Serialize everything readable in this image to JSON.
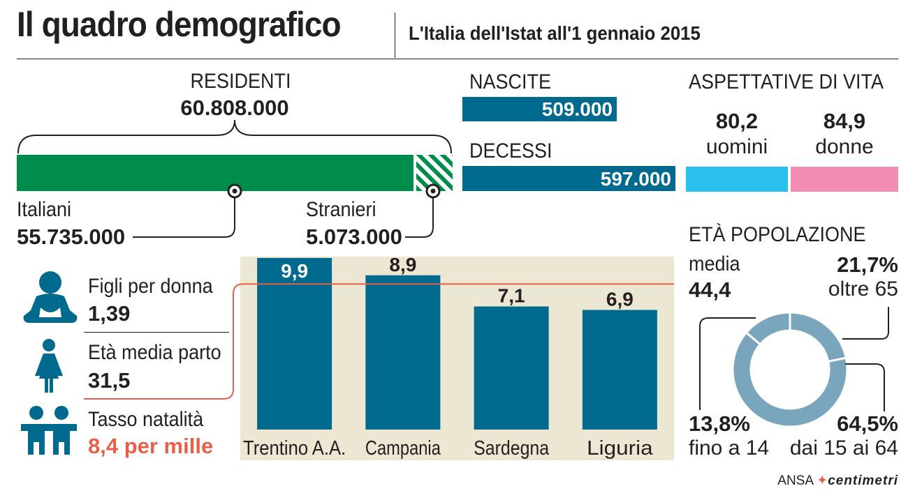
{
  "header": {
    "title": "Il quadro demografico",
    "subtitle": "L'Italia dell'Istat all'1 gennaio 2015"
  },
  "residenti": {
    "label": "RESIDENTI",
    "total": "60.808.000",
    "italiani_label": "Italiani",
    "italiani_value": "55.735.000",
    "stranieri_label": "Stranieri",
    "stranieri_value": "5.073.000",
    "italiani_share": 0.9166,
    "colors": {
      "italiani": "#008c4a",
      "stranieri_stripe": "#008c4a"
    }
  },
  "movimento": {
    "nascite_label": "NASCITE",
    "nascite_value": "509.000",
    "decessi_label": "DECESSI",
    "decessi_value": "597.000",
    "nascite_num": 509000,
    "decessi_num": 597000,
    "color": "#006a8e"
  },
  "aspettative": {
    "label": "ASPETTATIVE DI VITA",
    "uomini_value": "80,2",
    "uomini_label": "uomini",
    "donne_value": "84,9",
    "donne_label": "donne",
    "colors": {
      "uomini": "#29c0ee",
      "donne": "#f28db4"
    }
  },
  "natalita": {
    "figli_label": "Figli per donna",
    "figli_value": "1,39",
    "eta_label": "Età media parto",
    "eta_value": "31,5",
    "tasso_label": "Tasso natalità",
    "tasso_value": "8,4 per mille",
    "icons": [
      "baby-icon",
      "woman-icon",
      "children-icon"
    ],
    "icon_color": "#006a8e",
    "accent_color": "#e8604c"
  },
  "chart_data": [
    {
      "type": "bar",
      "categories": [
        "Trentino A.A.",
        "Campania",
        "Sardegna",
        "Liguria"
      ],
      "values": [
        9.9,
        8.9,
        7.1,
        6.9
      ],
      "value_labels": [
        "9,9",
        "8,9",
        "7,1",
        "6,9"
      ],
      "reference_value": 8.4,
      "ylim": [
        0,
        10.5
      ],
      "bar_color": "#006a8e",
      "background": "#ebe7d3",
      "reference_color": "#e8604c"
    },
    {
      "type": "pie",
      "title": "ETÀ POPOLAZIONE",
      "media_label": "media",
      "media_value": "44,4",
      "slices": [
        {
          "value": 21.7,
          "value_label": "21,7%",
          "label": "oltre 65"
        },
        {
          "value": 64.5,
          "value_label": "64,5%",
          "label": "dai 15 ai 64"
        },
        {
          "value": 13.8,
          "value_label": "13,8%",
          "label": "fino a 14"
        }
      ],
      "color": "#7aa6bd"
    }
  ],
  "footer": {
    "brand": "ANSA",
    "brand2": "centimetri"
  }
}
